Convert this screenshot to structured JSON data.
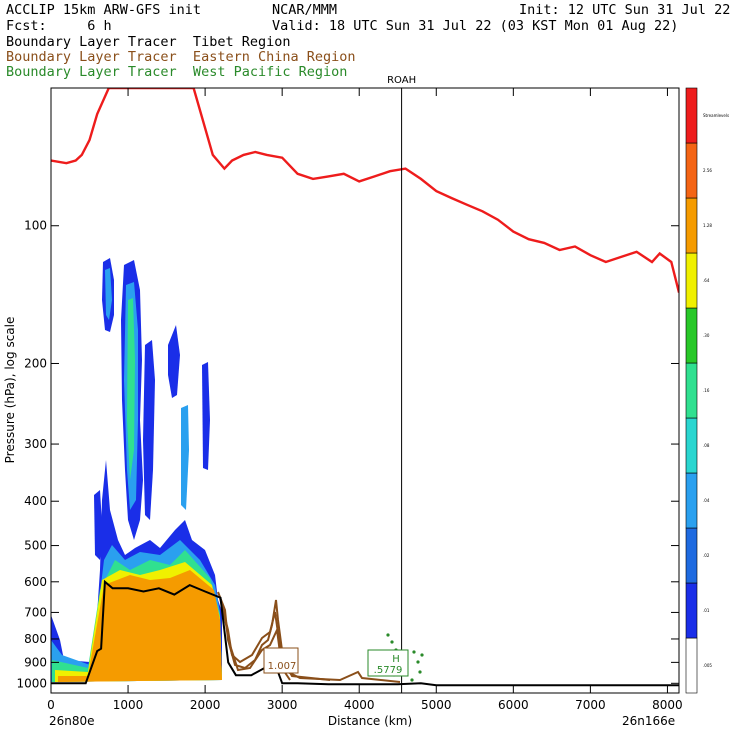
{
  "header": {
    "model": "ACCLIP 15km ARW-GFS init",
    "org": "NCAR/MMM",
    "init": "Init: 12 UTC Sun 31 Jul 22",
    "fcst": "Fcst:     6 h",
    "valid": "Valid: 18 UTC Sun 31 Jul 22 (03 KST Mon 01 Aug 22)",
    "tracers": [
      {
        "label": "Boundary Layer Tracer  Tibet Region",
        "color": "#000000"
      },
      {
        "label": "Boundary Layer Tracer  Eastern China Region",
        "color": "#8a4f1a"
      },
      {
        "label": "Boundary Layer Tracer  West Pacific Region",
        "color": "#2a8a2a"
      }
    ]
  },
  "chart_data": {
    "type": "line",
    "xlabel": "Distance (km)",
    "ylabel": "Pressure (hPa), log scale",
    "xlim": [
      0,
      8150
    ],
    "ylim": [
      1050,
      50
    ],
    "x_ticks": [
      "0",
      "1000",
      "2000",
      "3000",
      "4000",
      "5000",
      "6000",
      "7000",
      "8000"
    ],
    "y_ticks": [
      "100",
      "200",
      "300",
      "400",
      "500",
      "600",
      "700",
      "800",
      "900",
      "1000"
    ],
    "start_label": "26n80e",
    "end_label": "26n166e",
    "marker_line": {
      "label": "ROAH",
      "x": 4550
    },
    "annotations": [
      {
        "label": "1.007",
        "x": 3000,
        "color": "#8a4f1a"
      },
      {
        "label": "H",
        "x": 4400,
        "color": "#2a8a2a"
      },
      {
        "label": ".5779",
        "x": 4400,
        "color": "#2a8a2a"
      }
    ],
    "tropopause": {
      "color": "#ee1c1c",
      "x": [
        0,
        200,
        320,
        400,
        500,
        600,
        750,
        1400,
        1850,
        2100,
        2250,
        2350,
        2500,
        2650,
        2800,
        3000,
        3200,
        3400,
        3600,
        3800,
        4000,
        4200,
        4400,
        4600,
        4800,
        5000,
        5200,
        5400,
        5600,
        5800,
        6000,
        6200,
        6400,
        6600,
        6800,
        7000,
        7200,
        7400,
        7600,
        7800,
        7900,
        8050,
        8150
      ],
      "p": [
        72,
        73,
        72,
        70,
        65,
        57,
        50,
        50,
        50,
        70,
        75,
        72,
        70,
        69,
        70,
        71,
        77,
        79,
        78,
        77,
        80,
        78,
        76,
        75,
        79,
        84,
        87,
        90,
        93,
        97,
        103,
        107,
        109,
        113,
        111,
        116,
        120,
        117,
        114,
        120,
        115,
        120,
        140
      ]
    },
    "terrain": {
      "x": [
        0,
        450,
        600,
        650,
        700,
        800,
        1000,
        1200,
        1400,
        1600,
        1800,
        2000,
        2200,
        2300,
        2400,
        2600,
        2800,
        2900,
        3000,
        3200,
        3600,
        4000,
        4500,
        4800,
        5000,
        6000,
        7000,
        8150
      ],
      "p": [
        1000,
        1000,
        850,
        840,
        600,
        620,
        620,
        630,
        620,
        640,
        610,
        630,
        650,
        900,
        960,
        960,
        920,
        900,
        1000,
        1000,
        1005,
        1005,
        1005,
        1000,
        1010,
        1010,
        1010,
        1010
      ]
    },
    "colorbar": {
      "levels": [
        ".005",
        ".01",
        ".02",
        ".04",
        ".08",
        ".16",
        ".30",
        ".64",
        "1.28",
        "2.56",
        "Streamlevels"
      ],
      "colors": [
        "#ffffff",
        "#1a2ee8",
        "#1e6ae0",
        "#2aa0ef",
        "#2ad6d0",
        "#30e090",
        "#28c828",
        "#f0f000",
        "#f59b00",
        "#f46414",
        "#ee1c1c"
      ]
    }
  }
}
